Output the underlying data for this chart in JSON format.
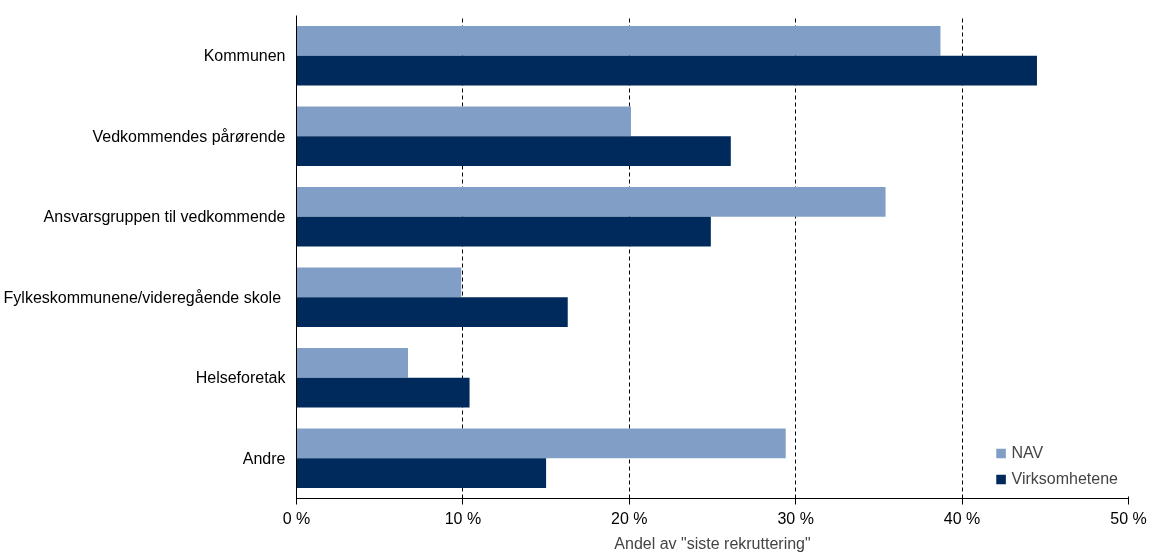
{
  "chart_data": {
    "type": "bar",
    "orientation": "horizontal",
    "xlabel": "Andel av \"siste rekruttering\"",
    "categories": [
      "Kommunen",
      "Vedkommendes pårørende",
      "Ansvarsgruppen til vedkommende",
      "Fylkeskommunene/videregående  skole",
      "Helseforetak",
      "Andre"
    ],
    "series": [
      {
        "name": "NAV",
        "color": "#819fc6",
        "values": [
          38.7,
          20.1,
          35.4,
          9.9,
          6.7,
          29.4
        ]
      },
      {
        "name": "Virksomhetene",
        "color": "#002a5c",
        "values": [
          44.5,
          26.1,
          24.9,
          16.3,
          10.4,
          15.0
        ]
      }
    ],
    "xlim": [
      0,
      50
    ],
    "xticks": [
      {
        "value": 0,
        "label": "0 %"
      },
      {
        "value": 10,
        "label": "10 %"
      },
      {
        "value": 20,
        "label": "20 %"
      },
      {
        "value": 30,
        "label": "30 %"
      },
      {
        "value": 40,
        "label": "40 %"
      },
      {
        "value": 50,
        "label": "50 %"
      }
    ],
    "grid": "x",
    "legend": "bottom right"
  }
}
